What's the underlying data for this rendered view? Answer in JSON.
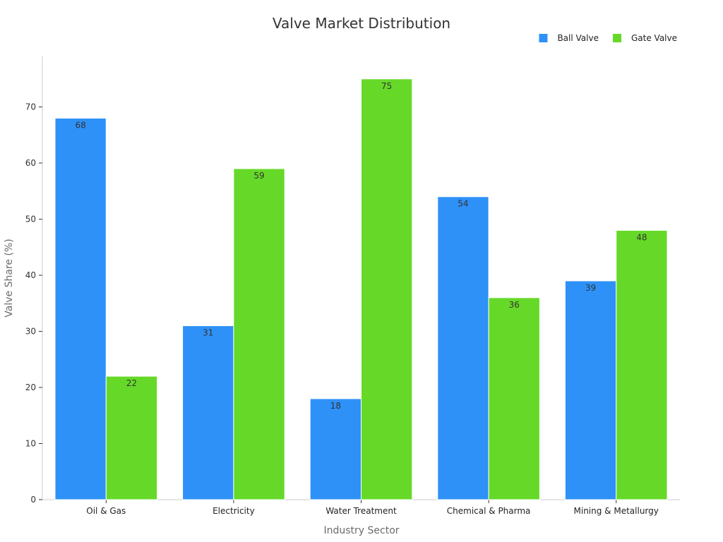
{
  "chart_data": {
    "type": "bar",
    "title": "Valve Market Distribution",
    "xlabel": "Industry Sector",
    "ylabel": "Valve Share (%)",
    "categories": [
      "Oil & Gas",
      "Electricity",
      "Water Treatment",
      "Chemical & Pharma",
      "Mining & Metallurgy"
    ],
    "series": [
      {
        "name": "Ball Valve",
        "values": [
          68,
          31,
          18,
          54,
          39
        ],
        "color": "#2e91f7"
      },
      {
        "name": "Gate Valve",
        "values": [
          22,
          59,
          75,
          36,
          48
        ],
        "color": "#66d928"
      }
    ],
    "ylim": [
      0,
      79
    ],
    "yticks": [
      0,
      10,
      20,
      30,
      40,
      50,
      60,
      70
    ],
    "legend_position": "top-right",
    "grid": false,
    "data_labels": true
  }
}
